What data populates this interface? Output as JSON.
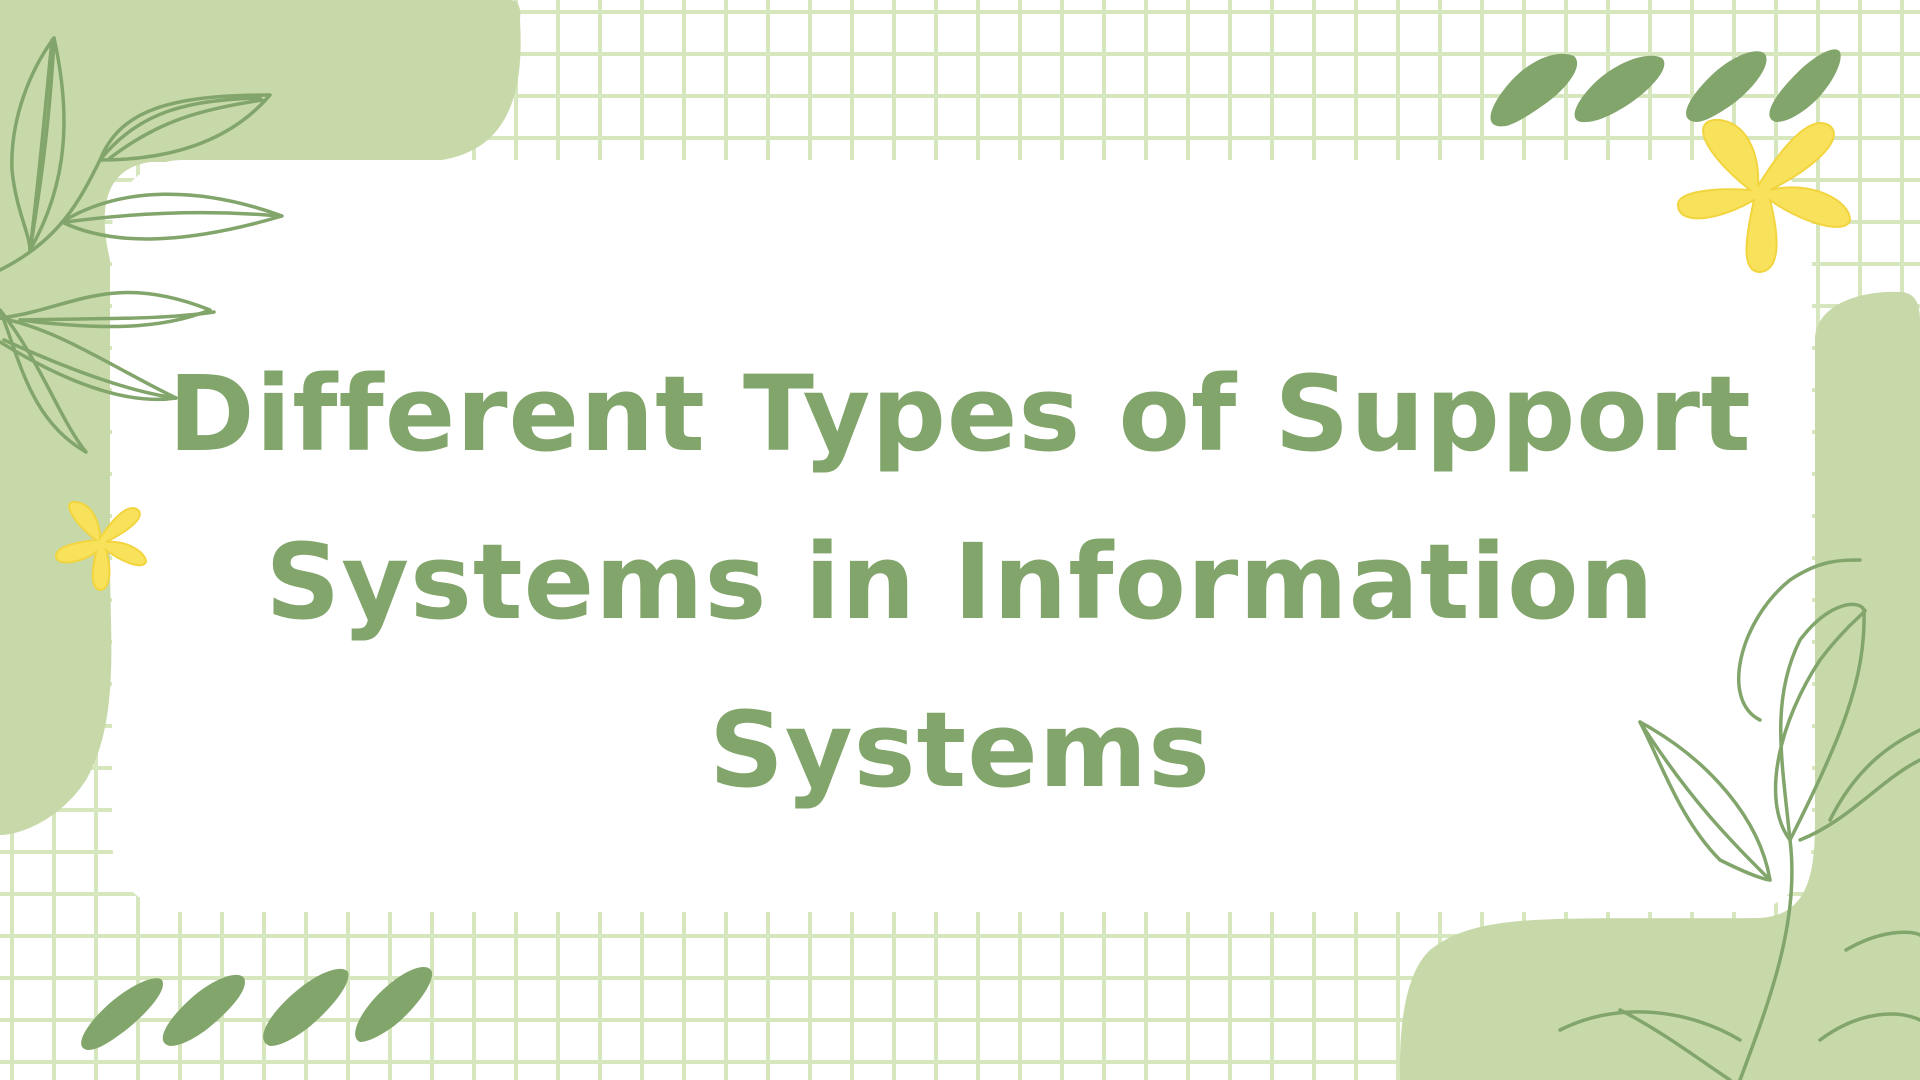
{
  "slide": {
    "title": "Different Types of Support Systems in Information Systems"
  },
  "colors": {
    "background": "#ffffff",
    "grid_line": "#d6e6bd",
    "blob": "#c8d9a9",
    "leaf": "#82a56b",
    "flower": "#f8e25c",
    "title_text": "#82a56b"
  },
  "icons": {
    "decorations": [
      "leaf-outline-icon",
      "leaf-filled-icon",
      "flower-icon"
    ]
  }
}
